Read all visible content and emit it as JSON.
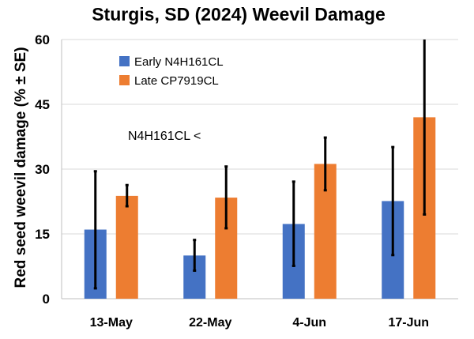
{
  "chart_data": {
    "type": "bar",
    "title": "Sturgis, SD (2024) Weevil Damage",
    "xlabel": "",
    "ylabel": "Red seed weevil damage (% ± SE)",
    "ylim": [
      0,
      60
    ],
    "yticks": [
      0,
      15,
      30,
      45,
      60
    ],
    "grid": true,
    "legend_position": "top-left",
    "categories": [
      "13-May",
      "22-May",
      "4-Jun",
      "17-Jun"
    ],
    "series": [
      {
        "name": "Early N4H161CL",
        "color": "#4472c4",
        "values": [
          16,
          10,
          17.3,
          22.6
        ],
        "err_low": [
          2.4,
          6.5,
          7.6,
          10.1
        ],
        "err_high": [
          29.5,
          13.6,
          27.1,
          35.1
        ]
      },
      {
        "name": "Late CP7919CL",
        "color": "#ed7d31",
        "values": [
          23.8,
          23.4,
          31.2,
          42
        ],
        "err_low": [
          21.4,
          16.3,
          25.1,
          19.5
        ],
        "err_high": [
          26.3,
          30.6,
          37.3,
          60
        ]
      }
    ],
    "annotations": [
      "N4H161CL <"
    ]
  }
}
